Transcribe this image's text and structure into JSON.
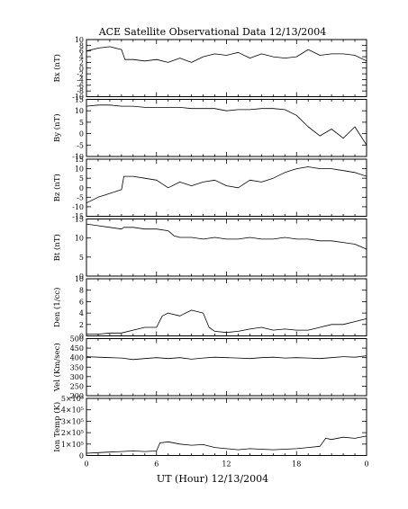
{
  "chart_data": {
    "type": "line",
    "title": "ACE Satellite Observational Data   12/13/2004",
    "xlabel": "UT (Hour)   12/13/2004",
    "x_ticks": [
      "0",
      "6",
      "12",
      "18",
      "0"
    ],
    "x_range": [
      0,
      24
    ],
    "panels": [
      {
        "id": "bx",
        "ylabel": "Bx (nT)",
        "ylim": [
          -10,
          10
        ],
        "yticks": [
          "-10",
          "-8",
          "-6",
          "-4",
          "-2",
          "0",
          "2",
          "4",
          "6",
          "8",
          "10"
        ],
        "series": [
          {
            "x": [
              0,
              1,
              2,
              3,
              3.3,
              4,
              5,
              6,
              7,
              8,
              9,
              10,
              11,
              12,
              13,
              14,
              15,
              16,
              17,
              18,
              19,
              20,
              21,
              22,
              23,
              24
            ],
            "y": [
              6,
              7,
              7.5,
              6.5,
              3,
              3,
              2.5,
              3,
              2,
              3.5,
              2,
              4,
              5,
              4.5,
              5.5,
              3.5,
              5,
              4,
              3.5,
              4,
              6.5,
              4.5,
              5,
              5,
              4.5,
              2.5
            ]
          }
        ]
      },
      {
        "id": "by",
        "ylabel": "By (nT)",
        "ylim": [
          -10,
          15
        ],
        "yticks": [
          "-10",
          "-5",
          "0",
          "5",
          "10",
          "15"
        ],
        "series": [
          {
            "x": [
              0,
              1,
              2,
              3,
              4,
              5,
              6,
              7,
              8,
              9,
              10,
              11,
              12,
              13,
              14,
              15,
              16,
              17,
              18,
              19,
              20,
              21,
              22,
              23,
              24
            ],
            "y": [
              12,
              12.5,
              12.5,
              12,
              12,
              11.5,
              11.5,
              11.5,
              11.5,
              11,
              11,
              11,
              10,
              10.5,
              10.5,
              11,
              11,
              10.5,
              8,
              3,
              -1,
              2,
              -2,
              3,
              -5
            ]
          }
        ]
      },
      {
        "id": "bz",
        "ylabel": "Bz (nT)",
        "ylim": [
          -15,
          15
        ],
        "yticks": [
          "-15",
          "-10",
          "-5",
          "0",
          "5",
          "10",
          "15"
        ],
        "series": [
          {
            "x": [
              0,
              1,
              2,
              3,
              3.2,
              4,
              5,
              6,
              7,
              8,
              9,
              10,
              11,
              12,
              13,
              14,
              15,
              16,
              17,
              18,
              19,
              20,
              21,
              22,
              23,
              24
            ],
            "y": [
              -8,
              -5,
              -3,
              -1,
              6,
              6,
              5,
              4,
              0,
              3,
              1,
              3,
              4,
              1,
              0,
              4,
              3,
              5,
              8,
              10,
              11,
              10,
              10,
              9,
              8,
              6
            ]
          }
        ]
      },
      {
        "id": "bt",
        "ylabel": "Bt (nT)",
        "ylim": [
          0,
          17
        ],
        "yticks": [
          "0",
          "5",
          "10",
          "15"
        ],
        "series": [
          {
            "x": [
              0,
              1,
              2,
              3,
              3.2,
              4,
              5,
              6,
              7,
              7.5,
              8,
              9,
              10,
              11,
              12,
              13,
              14,
              15,
              16,
              17,
              18,
              19,
              20,
              21,
              22,
              23,
              24
            ],
            "y": [
              15.5,
              15,
              14.5,
              14,
              14.5,
              14.5,
              14,
              14,
              13.5,
              12,
              11.5,
              11.5,
              11,
              11.5,
              11,
              11,
              11.5,
              11,
              11,
              11.5,
              11,
              11,
              10.5,
              10.5,
              10,
              9.5,
              8
            ]
          }
        ]
      },
      {
        "id": "den",
        "ylabel": "Den (1/cc)",
        "ylim": [
          0,
          10
        ],
        "yticks": [
          "0",
          "2",
          "4",
          "6",
          "8",
          "10"
        ],
        "series": [
          {
            "x": [
              0,
              1,
              2,
              3,
              4,
              5,
              6,
              6.5,
              7,
              8,
              9,
              10,
              10.5,
              11,
              12,
              13,
              14,
              15,
              16,
              17,
              18,
              19,
              20,
              21,
              22,
              23,
              24
            ],
            "y": [
              0.3,
              0.3,
              0.5,
              0.5,
              1,
              1.5,
              1.5,
              3.5,
              4,
              3.5,
              4.5,
              4,
              1.5,
              0.8,
              0.6,
              0.8,
              1.2,
              1.5,
              1,
              1.2,
              1,
              1,
              1.5,
              2,
              2,
              2.5,
              3
            ]
          }
        ]
      },
      {
        "id": "vel",
        "ylabel": "Vel (Km/sec)",
        "ylim": [
          200,
          500
        ],
        "yticks": [
          "200",
          "250",
          "300",
          "350",
          "400",
          "450",
          "500"
        ],
        "series": [
          {
            "x": [
              0,
              1,
              2,
              3,
              4,
              5,
              6,
              7,
              8,
              9,
              10,
              11,
              12,
              13,
              14,
              15,
              16,
              17,
              18,
              19,
              20,
              21,
              22,
              23,
              24
            ],
            "y": [
              405,
              402,
              400,
              398,
              390,
              395,
              400,
              395,
              400,
              392,
              398,
              402,
              400,
              398,
              395,
              400,
              402,
              398,
              400,
              398,
              395,
              400,
              405,
              402,
              410
            ]
          }
        ]
      },
      {
        "id": "temp",
        "ylabel": "Ion Temp (K)",
        "ylim": [
          0,
          500000
        ],
        "yticks": [
          "0",
          "1×10⁵",
          "2×10⁵",
          "3×10⁵",
          "4×10⁵",
          "5×10⁵"
        ],
        "series": [
          {
            "x": [
              0,
              1,
              2,
              3,
              4,
              5,
              6,
              6.3,
              7,
              8,
              9,
              10,
              11,
              12,
              13,
              14,
              15,
              16,
              17,
              18,
              19,
              20,
              20.5,
              21,
              22,
              23,
              24
            ],
            "y": [
              20000,
              25000,
              30000,
              35000,
              40000,
              35000,
              40000,
              110000,
              120000,
              100000,
              90000,
              95000,
              70000,
              60000,
              50000,
              60000,
              55000,
              50000,
              55000,
              60000,
              70000,
              80000,
              150000,
              140000,
              160000,
              150000,
              170000
            ]
          }
        ]
      }
    ]
  }
}
